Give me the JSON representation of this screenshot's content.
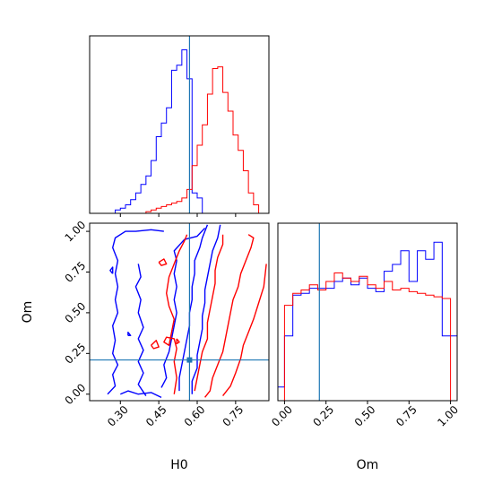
{
  "chart_data": [
    {
      "type": "histogram",
      "panel": "H0 marginal",
      "xlim": [
        0.18,
        0.88
      ],
      "truth": 0.57,
      "grid": false,
      "series": [
        {
          "color": "#0000ff",
          "bin_edges": [
            0.28,
            0.3,
            0.32,
            0.34,
            0.36,
            0.38,
            0.4,
            0.42,
            0.44,
            0.46,
            0.48,
            0.5,
            0.52,
            0.54,
            0.56,
            0.58,
            0.6,
            0.62,
            0.64
          ],
          "heights": [
            0.02,
            0.03,
            0.05,
            0.08,
            0.12,
            0.17,
            0.22,
            0.31,
            0.45,
            0.53,
            0.62,
            0.84,
            0.87,
            0.96,
            0.79,
            0.12,
            0.09,
            0.0
          ]
        },
        {
          "color": "#ff0000",
          "bin_edges": [
            0.4,
            0.42,
            0.44,
            0.46,
            0.48,
            0.5,
            0.52,
            0.54,
            0.56,
            0.58,
            0.6,
            0.62,
            0.64,
            0.66,
            0.68,
            0.7,
            0.72,
            0.74,
            0.76,
            0.78,
            0.8,
            0.82,
            0.84,
            0.86
          ],
          "heights": [
            0.01,
            0.02,
            0.03,
            0.04,
            0.05,
            0.06,
            0.07,
            0.09,
            0.14,
            0.28,
            0.4,
            0.52,
            0.7,
            0.85,
            0.86,
            0.71,
            0.6,
            0.46,
            0.37,
            0.25,
            0.12,
            0.05,
            0.0
          ]
        }
      ]
    },
    {
      "type": "contour",
      "panel": "H0 vs Om joint",
      "xlabel": "H0",
      "ylabel": "Om",
      "xlim": [
        0.18,
        0.88
      ],
      "ylim": [
        -0.04,
        1.05
      ],
      "xticks": [
        "0.30",
        "0.45",
        "0.60",
        "0.75"
      ],
      "xtick_values": [
        0.3,
        0.45,
        0.6,
        0.75
      ],
      "yticks": [
        "0.00",
        "0.25",
        "0.50",
        "0.75",
        "1.00"
      ],
      "ytick_values": [
        0.0,
        0.25,
        0.5,
        0.75,
        1.0
      ],
      "truth": {
        "x": 0.57,
        "y": 0.21
      },
      "series": [
        {
          "color": "#0000ff",
          "contours": [
            [
              [
                0.25,
                0.0
              ],
              [
                0.28,
                0.05
              ],
              [
                0.27,
                0.12
              ],
              [
                0.29,
                0.18
              ],
              [
                0.27,
                0.25
              ],
              [
                0.28,
                0.33
              ],
              [
                0.27,
                0.42
              ],
              [
                0.29,
                0.5
              ],
              [
                0.28,
                0.58
              ],
              [
                0.29,
                0.66
              ],
              [
                0.28,
                0.74
              ],
              [
                0.29,
                0.82
              ],
              [
                0.27,
                0.9
              ],
              [
                0.28,
                0.96
              ],
              [
                0.32,
                1.0
              ],
              [
                0.36,
                1.0
              ],
              [
                0.42,
                1.01
              ],
              [
                0.47,
                1.0
              ]
            ],
            [
              [
                0.3,
                0.0
              ],
              [
                0.33,
                0.02
              ],
              [
                0.37,
                0.0
              ],
              [
                0.42,
                0.01
              ],
              [
                0.46,
                -0.02
              ]
            ],
            [
              [
                0.4,
                -0.01
              ],
              [
                0.37,
                0.06
              ],
              [
                0.39,
                0.13
              ],
              [
                0.37,
                0.2
              ],
              [
                0.39,
                0.27
              ],
              [
                0.37,
                0.34
              ],
              [
                0.39,
                0.41
              ],
              [
                0.37,
                0.5
              ],
              [
                0.38,
                0.58
              ],
              [
                0.36,
                0.66
              ],
              [
                0.38,
                0.72
              ],
              [
                0.37,
                0.8
              ]
            ],
            [
              [
                0.46,
                0.04
              ],
              [
                0.48,
                0.1
              ],
              [
                0.47,
                0.18
              ],
              [
                0.49,
                0.26
              ],
              [
                0.5,
                0.34
              ],
              [
                0.51,
                0.42
              ],
              [
                0.52,
                0.5
              ],
              [
                0.51,
                0.58
              ],
              [
                0.52,
                0.66
              ],
              [
                0.51,
                0.74
              ],
              [
                0.52,
                0.82
              ],
              [
                0.51,
                0.88
              ],
              [
                0.55,
                0.95
              ],
              [
                0.6,
                0.97
              ],
              [
                0.63,
                1.02
              ]
            ],
            [
              [
                0.53,
                0.02
              ],
              [
                0.53,
                0.1
              ],
              [
                0.54,
                0.18
              ],
              [
                0.55,
                0.26
              ],
              [
                0.56,
                0.34
              ],
              [
                0.57,
                0.42
              ],
              [
                0.57,
                0.5
              ],
              [
                0.58,
                0.58
              ],
              [
                0.58,
                0.66
              ],
              [
                0.59,
                0.74
              ],
              [
                0.59,
                0.82
              ],
              [
                0.61,
                0.9
              ],
              [
                0.62,
                0.96
              ],
              [
                0.64,
                1.04
              ]
            ],
            [
              [
                0.58,
                0.0
              ],
              [
                0.58,
                0.08
              ],
              [
                0.6,
                0.16
              ],
              [
                0.6,
                0.24
              ],
              [
                0.61,
                0.32
              ],
              [
                0.62,
                0.4
              ],
              [
                0.62,
                0.48
              ],
              [
                0.63,
                0.56
              ],
              [
                0.63,
                0.64
              ],
              [
                0.64,
                0.72
              ],
              [
                0.65,
                0.8
              ],
              [
                0.66,
                0.88
              ],
              [
                0.68,
                0.96
              ],
              [
                0.69,
                1.04
              ]
            ],
            [
              [
                0.27,
                0.74
              ],
              [
                0.26,
                0.76
              ],
              [
                0.27,
                0.78
              ],
              [
                0.27,
                0.74
              ]
            ],
            [
              [
                0.33,
                0.36
              ],
              [
                0.33,
                0.38
              ],
              [
                0.34,
                0.36
              ],
              [
                0.33,
                0.36
              ]
            ]
          ]
        },
        {
          "color": "#ff0000",
          "contours": [
            [
              [
                0.51,
                0.0
              ],
              [
                0.52,
                0.1
              ],
              [
                0.51,
                0.2
              ],
              [
                0.52,
                0.28
              ],
              [
                0.51,
                0.34
              ],
              [
                0.48,
                0.35
              ],
              [
                0.47,
                0.32
              ],
              [
                0.49,
                0.3
              ],
              [
                0.5,
                0.38
              ],
              [
                0.51,
                0.46
              ],
              [
                0.49,
                0.54
              ],
              [
                0.48,
                0.62
              ],
              [
                0.49,
                0.72
              ],
              [
                0.51,
                0.8
              ],
              [
                0.53,
                0.88
              ],
              [
                0.55,
                0.94
              ],
              [
                0.56,
                0.98
              ]
            ],
            [
              [
                0.59,
                0.02
              ],
              [
                0.6,
                0.1
              ],
              [
                0.61,
                0.18
              ],
              [
                0.62,
                0.26
              ],
              [
                0.64,
                0.34
              ],
              [
                0.64,
                0.44
              ],
              [
                0.65,
                0.52
              ],
              [
                0.66,
                0.6
              ],
              [
                0.67,
                0.68
              ],
              [
                0.67,
                0.76
              ],
              [
                0.68,
                0.84
              ],
              [
                0.7,
                0.92
              ],
              [
                0.7,
                0.98
              ]
            ],
            [
              [
                0.63,
                -0.02
              ],
              [
                0.65,
                0.02
              ],
              [
                0.66,
                0.1
              ],
              [
                0.68,
                0.18
              ],
              [
                0.7,
                0.26
              ],
              [
                0.71,
                0.34
              ],
              [
                0.72,
                0.42
              ],
              [
                0.73,
                0.5
              ],
              [
                0.74,
                0.58
              ],
              [
                0.76,
                0.66
              ],
              [
                0.77,
                0.74
              ],
              [
                0.79,
                0.82
              ],
              [
                0.81,
                0.9
              ],
              [
                0.82,
                0.96
              ],
              [
                0.8,
                0.98
              ]
            ],
            [
              [
                0.7,
                -0.01
              ],
              [
                0.73,
                0.05
              ],
              [
                0.75,
                0.13
              ],
              [
                0.77,
                0.22
              ],
              [
                0.78,
                0.3
              ],
              [
                0.8,
                0.38
              ],
              [
                0.82,
                0.46
              ],
              [
                0.84,
                0.56
              ],
              [
                0.86,
                0.66
              ],
              [
                0.87,
                0.8
              ]
            ],
            [
              [
                0.45,
                0.81
              ],
              [
                0.47,
                0.83
              ],
              [
                0.48,
                0.8
              ],
              [
                0.46,
                0.79
              ],
              [
                0.45,
                0.81
              ]
            ],
            [
              [
                0.42,
                0.3
              ],
              [
                0.44,
                0.33
              ],
              [
                0.45,
                0.29
              ],
              [
                0.43,
                0.28
              ],
              [
                0.42,
                0.3
              ]
            ],
            [
              [
                0.52,
                0.34
              ],
              [
                0.53,
                0.32
              ],
              [
                0.52,
                0.31
              ],
              [
                0.52,
                0.34
              ]
            ]
          ]
        }
      ]
    },
    {
      "type": "histogram",
      "panel": "Om marginal",
      "xlabel": "Om",
      "xlim": [
        -0.04,
        1.04
      ],
      "xticks": [
        "0.00",
        "0.25",
        "0.50",
        "0.75",
        "1.00"
      ],
      "xtick_values": [
        0.0,
        0.25,
        0.5,
        0.75,
        1.0
      ],
      "truth": 0.21,
      "grid": false,
      "series": [
        {
          "color": "#0000ff",
          "bin_edges": [
            -0.04,
            0.0,
            0.05,
            0.1,
            0.15,
            0.2,
            0.25,
            0.3,
            0.35,
            0.4,
            0.45,
            0.5,
            0.55,
            0.6,
            0.65,
            0.7,
            0.75,
            0.8,
            0.85,
            0.9,
            0.95,
            1.0,
            1.04
          ],
          "heights": [
            0.08,
            0.38,
            0.62,
            0.63,
            0.66,
            0.66,
            0.66,
            0.7,
            0.72,
            0.68,
            0.72,
            0.66,
            0.64,
            0.76,
            0.8,
            0.88,
            0.7,
            0.88,
            0.83,
            0.93,
            0.38,
            0.38
          ]
        },
        {
          "color": "#ff0000",
          "bin_edges": [
            0.0,
            0.05,
            0.1,
            0.15,
            0.2,
            0.25,
            0.3,
            0.35,
            0.4,
            0.45,
            0.5,
            0.55,
            0.6,
            0.65,
            0.7,
            0.75,
            0.8,
            0.85,
            0.9,
            0.95,
            1.0
          ],
          "heights": [
            0.56,
            0.63,
            0.65,
            0.68,
            0.65,
            0.7,
            0.75,
            0.72,
            0.7,
            0.73,
            0.68,
            0.66,
            0.7,
            0.65,
            0.66,
            0.64,
            0.63,
            0.62,
            0.61,
            0.6
          ]
        }
      ]
    }
  ],
  "colors": {
    "truth_line": "#1f77b4",
    "series_a": "#0000ff",
    "series_b": "#ff0000",
    "axes": "#000000"
  }
}
